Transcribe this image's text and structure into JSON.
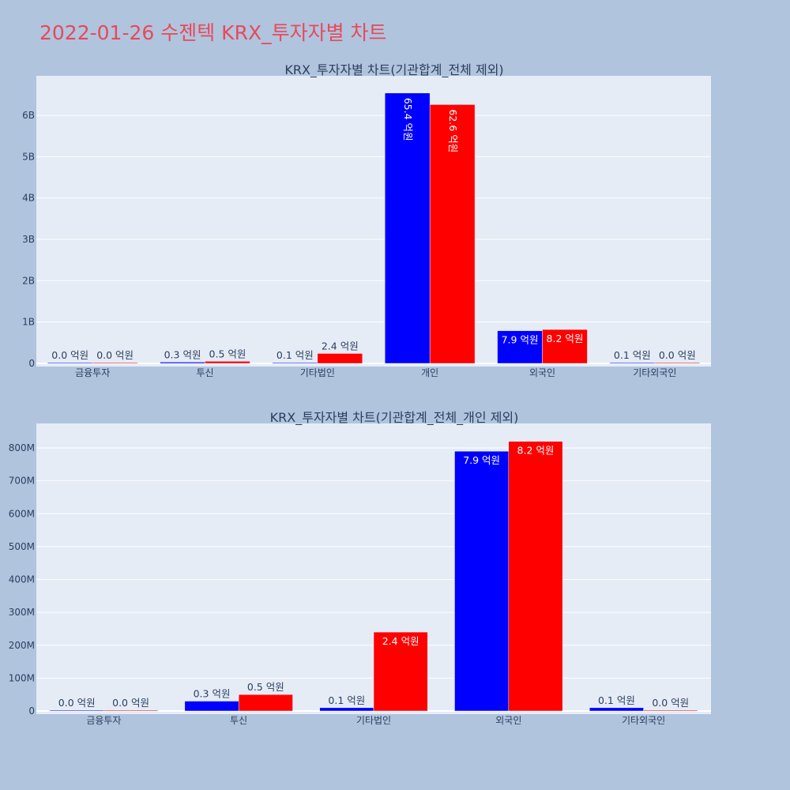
{
  "page_title": "2022-01-26 수젠텍 KRX_투자자별 차트",
  "colors": {
    "background": "#b0c4de",
    "plot_bg": "#e5ecf6",
    "title": "#e8495a",
    "series_a": "#0000ff",
    "series_b": "#ff0000"
  },
  "chart_data": [
    {
      "type": "bar",
      "title": "KRX_투자자별 차트(기관합계_전체 제외)",
      "categories": [
        "금융투자",
        "투신",
        "기타법인",
        "개인",
        "외국인",
        "기타외국인"
      ],
      "series": [
        {
          "values": [
            0.0,
            30000000,
            10000000,
            6540000000,
            790000000,
            10000000
          ],
          "labels": [
            "0.0 억원",
            "0.3 억원",
            "0.1 억원",
            "65.4 억원",
            "7.9 억원",
            "0.1 억원"
          ]
        },
        {
          "values": [
            0.0,
            50000000,
            240000000,
            6260000000,
            820000000,
            0.0
          ],
          "labels": [
            "0.0 억원",
            "0.5 억원",
            "2.4 억원",
            "62.6 억원",
            "8.2 억원",
            "0.0 억원"
          ]
        }
      ],
      "ylim": [
        0,
        6950000000
      ],
      "yticks": [
        0,
        1000000000,
        2000000000,
        3000000000,
        4000000000,
        5000000000,
        6000000000
      ],
      "ytick_labels": [
        "0",
        "1B",
        "2B",
        "3B",
        "4B",
        "5B",
        "6B"
      ],
      "grid": true
    },
    {
      "type": "bar",
      "title": "KRX_투자자별 차트(기관합계_전체_개인 제외)",
      "categories": [
        "금융투자",
        "투신",
        "기타법인",
        "외국인",
        "기타외국인"
      ],
      "series": [
        {
          "values": [
            0.0,
            30000000,
            10000000,
            790000000,
            10000000
          ],
          "labels": [
            "0.0 억원",
            "0.3 억원",
            "0.1 억원",
            "7.9 억원",
            "0.1 억원"
          ]
        },
        {
          "values": [
            0.0,
            50000000,
            240000000,
            820000000,
            0.0
          ],
          "labels": [
            "0.0 억원",
            "0.5 억원",
            "2.4 억원",
            "8.2 억원",
            "0.0 억원"
          ]
        }
      ],
      "ylim": [
        0,
        870000000
      ],
      "yticks": [
        0,
        100000000,
        200000000,
        300000000,
        400000000,
        500000000,
        600000000,
        700000000,
        800000000
      ],
      "ytick_labels": [
        "0",
        "100M",
        "200M",
        "300M",
        "400M",
        "500M",
        "600M",
        "700M",
        "800M"
      ],
      "grid": true
    }
  ]
}
